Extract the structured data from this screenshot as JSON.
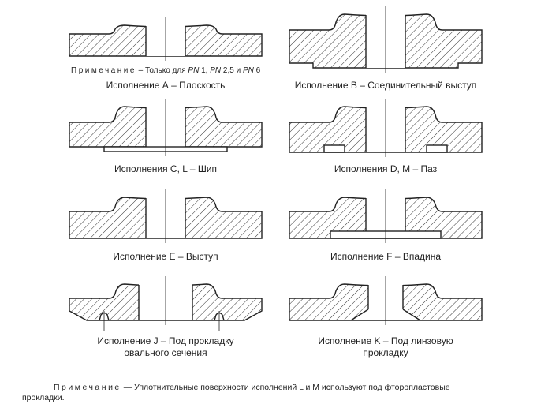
{
  "top_note": {
    "prefix": "Примечание",
    "text": " – Только для ",
    "pn": "PN",
    "v1": " 1, ",
    "v2": " 2,5 и ",
    "v3": " 6"
  },
  "figures": [
    {
      "id": "A",
      "label": "Исполнение А – Плоскость"
    },
    {
      "id": "B",
      "label": "Исполнение В – Соединительный выступ"
    },
    {
      "id": "C",
      "label": "Исполнения С, L – Шип"
    },
    {
      "id": "D",
      "label": "Исполнения D, М – Паз"
    },
    {
      "id": "E",
      "label": "Исполнение Е – Выступ"
    },
    {
      "id": "F",
      "label": "Исполнение F – Впадина"
    },
    {
      "id": "J",
      "label": "Исполнение J – Под прокладку",
      "label2": "овального сечения"
    },
    {
      "id": "K",
      "label": "Исполнение K – Под линзовую",
      "label2": "прокладку"
    }
  ],
  "footnote": {
    "prefix": "Примечание",
    "text": " — Уплотнительные поверхности исполнений L и М используют под фторопластовые",
    "text2": "прокладки."
  }
}
